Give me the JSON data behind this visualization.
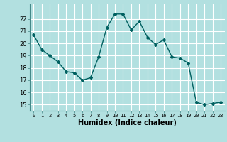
{
  "x": [
    0,
    1,
    2,
    3,
    4,
    5,
    6,
    7,
    8,
    9,
    10,
    11,
    12,
    13,
    14,
    15,
    16,
    17,
    18,
    19,
    20,
    21,
    22,
    23
  ],
  "y": [
    20.7,
    19.5,
    19.0,
    18.5,
    17.7,
    17.6,
    17.0,
    17.2,
    18.9,
    21.3,
    22.4,
    22.4,
    21.1,
    21.8,
    20.5,
    19.9,
    20.3,
    18.9,
    18.8,
    18.4,
    15.2,
    15.0,
    15.1,
    15.2
  ],
  "xlabel": "Humidex (Indice chaleur)",
  "ylim": [
    14.5,
    23.2
  ],
  "xlim": [
    -0.5,
    23.5
  ],
  "yticks": [
    15,
    16,
    17,
    18,
    19,
    20,
    21,
    22
  ],
  "xticks": [
    0,
    1,
    2,
    3,
    4,
    5,
    6,
    7,
    8,
    9,
    10,
    11,
    12,
    13,
    14,
    15,
    16,
    17,
    18,
    19,
    20,
    21,
    22,
    23
  ],
  "line_color": "#006060",
  "marker_color": "#006060",
  "bg_color": "#b2e0e0",
  "grid_color": "#ffffff",
  "title": ""
}
